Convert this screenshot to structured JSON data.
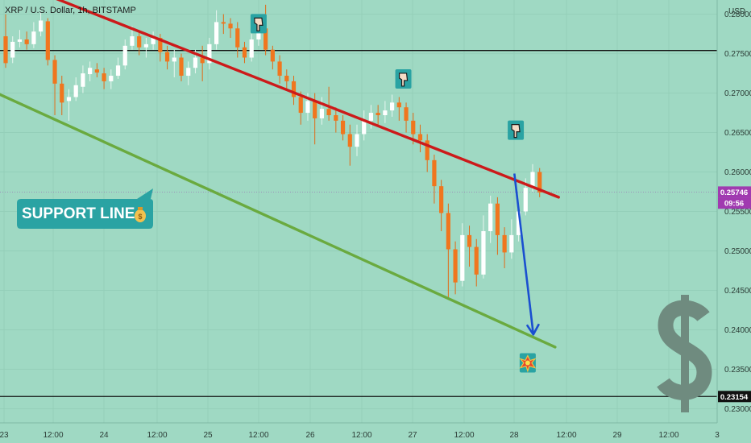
{
  "header": {
    "title": "XRP / U.S. Dollar, 1h, BITSTAMP",
    "currency": "USD"
  },
  "support_label": {
    "text": "SUPPORT LINE",
    "icon": "money-bag-icon"
  },
  "chart_data": {
    "type": "candlestick",
    "title": "XRP / U.S. Dollar, 1h, BITSTAMP",
    "ylabel": "USD",
    "ylim": [
      0.2282,
      0.2818
    ],
    "x_tick_labels": [
      "23",
      "12:00",
      "24",
      "12:00",
      "25",
      "12:00",
      "26",
      "12:00",
      "27",
      "12:00",
      "28",
      "12:00",
      "29",
      "12:00",
      "3"
    ],
    "y_tick_labels": [
      "0.28000",
      "0.27500",
      "0.27000",
      "0.26500",
      "0.26000",
      "0.25500",
      "0.25000",
      "0.24500",
      "0.24000",
      "0.23500",
      "0.23000"
    ],
    "y_ticks": [
      0.28,
      0.275,
      0.27,
      0.265,
      0.26,
      0.255,
      0.25,
      0.245,
      0.24,
      0.235,
      0.23
    ],
    "price_tags": [
      {
        "label": "0.25746",
        "value": 0.25746,
        "color": "#a03ab0"
      },
      {
        "label": "09:56",
        "value": 0.25605,
        "color": "#a03ab0"
      },
      {
        "label": "0.23154",
        "value": 0.23154,
        "color": "#111111"
      }
    ],
    "horizontal_lines": [
      {
        "value": 0.2754,
        "color": "#111111"
      },
      {
        "value": 0.23154,
        "color": "#111111"
      }
    ],
    "current_price": 0.25746,
    "trendlines": [
      {
        "name": "resistance",
        "color": "#cc1a1a",
        "points": [
          [
            0.0,
            0.2845
          ],
          [
            78.7,
            0.2568
          ]
        ]
      },
      {
        "name": "support",
        "color": "#6aaa3f",
        "points": [
          [
            -2.0,
            0.2703
          ],
          [
            78.2,
            0.2378
          ]
        ]
      }
    ],
    "projection_arrow": {
      "color": "#1a4fd0",
      "points": [
        [
          72.4,
          0.2598
        ],
        [
          75.1,
          0.2394
        ]
      ]
    },
    "markers": [
      {
        "icon": "pointing-down-icon",
        "x": 36.0,
        "y": 0.2788
      },
      {
        "icon": "pointing-down-icon",
        "x": 56.6,
        "y": 0.2718
      },
      {
        "icon": "pointing-down-icon",
        "x": 72.6,
        "y": 0.2653
      },
      {
        "icon": "explosion-icon",
        "x": 74.3,
        "y": 0.2358
      }
    ],
    "candles": [
      [
        0.2772,
        0.2738,
        0.28,
        0.2732
      ],
      [
        0.2745,
        0.2765,
        0.2772,
        0.2738
      ],
      [
        0.2765,
        0.2768,
        0.278,
        0.2758
      ],
      [
        0.2768,
        0.2762,
        0.2778,
        0.2755
      ],
      [
        0.2762,
        0.2778,
        0.279,
        0.2757
      ],
      [
        0.2778,
        0.2792,
        0.2805,
        0.2772
      ],
      [
        0.2791,
        0.2742,
        0.2795,
        0.2735
      ],
      [
        0.2742,
        0.2712,
        0.2748,
        0.2672
      ],
      [
        0.2712,
        0.2688,
        0.2722,
        0.2672
      ],
      [
        0.269,
        0.2695,
        0.2705,
        0.2665
      ],
      [
        0.2695,
        0.271,
        0.272,
        0.269
      ],
      [
        0.2708,
        0.2725,
        0.2735,
        0.27
      ],
      [
        0.2724,
        0.2732,
        0.274,
        0.2715
      ],
      [
        0.273,
        0.2726,
        0.2738,
        0.272
      ],
      [
        0.2725,
        0.2715,
        0.2732,
        0.2705
      ],
      [
        0.2715,
        0.2722,
        0.273,
        0.2705
      ],
      [
        0.2722,
        0.2735,
        0.2745,
        0.2718
      ],
      [
        0.2735,
        0.276,
        0.2768,
        0.273
      ],
      [
        0.276,
        0.2772,
        0.2785,
        0.2755
      ],
      [
        0.2772,
        0.2758,
        0.2778,
        0.2748
      ],
      [
        0.2758,
        0.2762,
        0.277,
        0.2745
      ],
      [
        0.2762,
        0.277,
        0.2778,
        0.2755
      ],
      [
        0.277,
        0.2752,
        0.2775,
        0.274
      ],
      [
        0.2752,
        0.274,
        0.276,
        0.273
      ],
      [
        0.274,
        0.2745,
        0.2755,
        0.272
      ],
      [
        0.2745,
        0.2722,
        0.275,
        0.2715
      ],
      [
        0.2722,
        0.2732,
        0.274,
        0.271
      ],
      [
        0.2732,
        0.2745,
        0.2755,
        0.2725
      ],
      [
        0.2745,
        0.2738,
        0.276,
        0.2715
      ],
      [
        0.2738,
        0.2762,
        0.277,
        0.273
      ],
      [
        0.2762,
        0.279,
        0.2805,
        0.2755
      ],
      [
        0.279,
        0.2788,
        0.28,
        0.2775
      ],
      [
        0.2788,
        0.2782,
        0.2795,
        0.277
      ],
      [
        0.2782,
        0.2758,
        0.279,
        0.2745
      ],
      [
        0.2758,
        0.2745,
        0.2765,
        0.2738
      ],
      [
        0.2745,
        0.2768,
        0.2775,
        0.274
      ],
      [
        0.2768,
        0.2782,
        0.2798,
        0.276
      ],
      [
        0.2782,
        0.2755,
        0.2812,
        0.2748
      ],
      [
        0.2755,
        0.274,
        0.276,
        0.273
      ],
      [
        0.274,
        0.2722,
        0.2748,
        0.2712
      ],
      [
        0.2722,
        0.2715,
        0.273,
        0.2705
      ],
      [
        0.2715,
        0.2695,
        0.2722,
        0.2685
      ],
      [
        0.2695,
        0.2675,
        0.2702,
        0.266
      ],
      [
        0.2675,
        0.269,
        0.27,
        0.2665
      ],
      [
        0.269,
        0.2668,
        0.27,
        0.2635
      ],
      [
        0.2668,
        0.268,
        0.2695,
        0.266
      ],
      [
        0.268,
        0.2672,
        0.2708,
        0.2665
      ],
      [
        0.2672,
        0.2665,
        0.2682,
        0.265
      ],
      [
        0.2665,
        0.2648,
        0.2672,
        0.264
      ],
      [
        0.2648,
        0.2632,
        0.266,
        0.2608
      ],
      [
        0.2632,
        0.2648,
        0.266,
        0.262
      ],
      [
        0.2648,
        0.2665,
        0.2678,
        0.264
      ],
      [
        0.2665,
        0.2675,
        0.2685,
        0.2655
      ],
      [
        0.2675,
        0.2672,
        0.2685,
        0.266
      ],
      [
        0.2672,
        0.2678,
        0.269,
        0.2662
      ],
      [
        0.2678,
        0.2688,
        0.2698,
        0.267
      ],
      [
        0.2688,
        0.2682,
        0.2695,
        0.2665
      ],
      [
        0.2682,
        0.2665,
        0.2688,
        0.265
      ],
      [
        0.2665,
        0.2648,
        0.2675,
        0.2635
      ],
      [
        0.2648,
        0.264,
        0.266,
        0.2625
      ],
      [
        0.264,
        0.2615,
        0.2648,
        0.26
      ],
      [
        0.2615,
        0.2582,
        0.2622,
        0.256
      ],
      [
        0.2582,
        0.2548,
        0.259,
        0.2525
      ],
      [
        0.2548,
        0.2502,
        0.256,
        0.244
      ],
      [
        0.2502,
        0.246,
        0.2512,
        0.2445
      ],
      [
        0.2462,
        0.252,
        0.2535,
        0.2455
      ],
      [
        0.252,
        0.2505,
        0.2532,
        0.248
      ],
      [
        0.2505,
        0.247,
        0.2515,
        0.2455
      ],
      [
        0.247,
        0.2525,
        0.2545,
        0.2465
      ],
      [
        0.2525,
        0.256,
        0.257,
        0.251
      ],
      [
        0.256,
        0.252,
        0.2568,
        0.2495
      ],
      [
        0.252,
        0.2498,
        0.253,
        0.2478
      ],
      [
        0.2498,
        0.252,
        0.254,
        0.249
      ],
      [
        0.252,
        0.255,
        0.256,
        0.2512
      ],
      [
        0.255,
        0.258,
        0.2592,
        0.2545
      ],
      [
        0.258,
        0.26,
        0.261,
        0.2575
      ],
      [
        0.26,
        0.2574,
        0.2605,
        0.2568
      ]
    ]
  }
}
